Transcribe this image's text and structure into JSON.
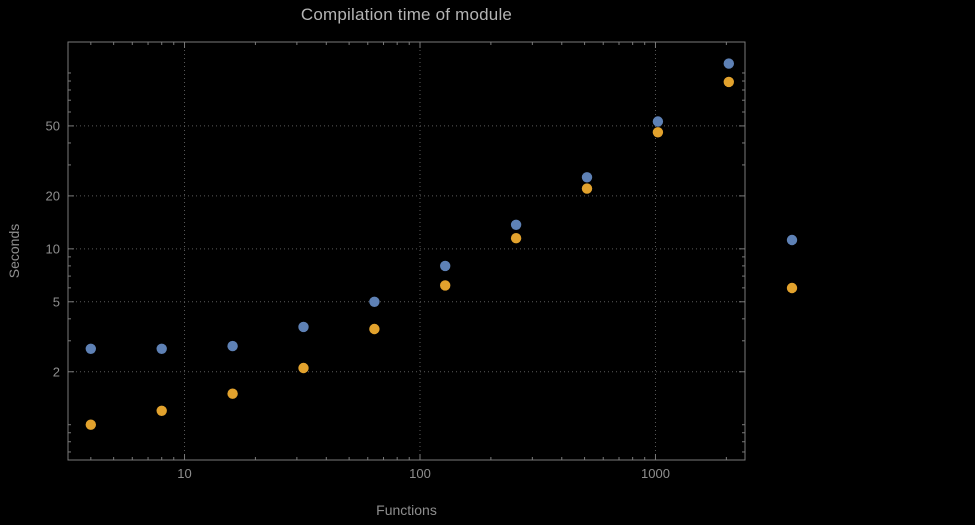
{
  "chart_data": {
    "type": "scatter",
    "title": "Compilation time of module",
    "xlabel": "Functions",
    "ylabel": "Seconds",
    "x_scale": "log",
    "y_scale": "log",
    "xlim": [
      3.2,
      2400
    ],
    "ylim": [
      0.63,
      150
    ],
    "grid": true,
    "x": [
      4,
      8,
      16,
      32,
      64,
      128,
      256,
      512,
      1024,
      2048
    ],
    "series": [
      {
        "name": "series-1",
        "color": "#5e81b5",
        "values": [
          2.7,
          2.7,
          2.8,
          3.6,
          5.0,
          8.0,
          13.7,
          25.5,
          53,
          113
        ]
      },
      {
        "name": "series-2",
        "color": "#e2a22d",
        "values": [
          1.0,
          1.2,
          1.5,
          2.1,
          3.5,
          6.2,
          11.5,
          22,
          46,
          89
        ]
      }
    ],
    "x_ticks": [
      {
        "value": 10,
        "label": "10"
      },
      {
        "value": 100,
        "label": "100"
      },
      {
        "value": 1000,
        "label": "1000"
      }
    ],
    "y_ticks": [
      {
        "value": 2,
        "label": "2"
      },
      {
        "value": 5,
        "label": "5"
      },
      {
        "value": 10,
        "label": "10"
      },
      {
        "value": 20,
        "label": "20"
      },
      {
        "value": 50,
        "label": "50"
      }
    ],
    "legend_markers": [
      {
        "color": "#5e81b5"
      },
      {
        "color": "#e2a22d"
      }
    ],
    "style": {
      "background": "#000000",
      "frame": "#7a7a7a",
      "grid": "#5a5a5a",
      "label": "#8e8e8e",
      "title": "#b4b4b4"
    }
  }
}
